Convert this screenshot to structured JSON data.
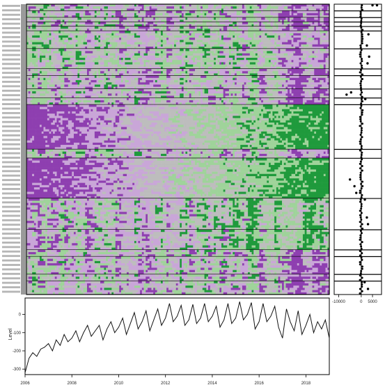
{
  "colors": {
    "purple": "#8e3fb0",
    "light_purple": "#c9a6d8",
    "grey": "#bdbdbd",
    "light_green": "#9fd39a",
    "green": "#1f9a3c",
    "line": "#111111",
    "frame": "#000000"
  },
  "chart_data": [
    {
      "type": "heatmap",
      "title": "",
      "xlabel": "",
      "ylabel": "",
      "columns": 160,
      "blocks": [
        {
          "rows": 3,
          "pattern": "mixed"
        },
        {
          "rows": 3,
          "pattern": "mixed"
        },
        {
          "rows": 2,
          "pattern": "mixed"
        },
        {
          "rows": 2,
          "pattern": "mixed"
        },
        {
          "rows": 2,
          "pattern": "mixed"
        },
        {
          "rows": 8,
          "pattern": "green_early"
        },
        {
          "rows": 9,
          "pattern": "green_early"
        },
        {
          "rows": 3,
          "pattern": "mixed"
        },
        {
          "rows": 6,
          "pattern": "mixed"
        },
        {
          "rows": 4,
          "pattern": "mixed"
        },
        {
          "rows": 3,
          "pattern": "mixed"
        },
        {
          "rows": 20,
          "pattern": "purple_to_green"
        },
        {
          "rows": 4,
          "pattern": "mixed"
        },
        {
          "rows": 18,
          "pattern": "purple_to_green"
        },
        {
          "rows": 14,
          "pattern": "purple_green_stripes"
        },
        {
          "rows": 9,
          "pattern": "purple_green_stripes"
        },
        {
          "rows": 3,
          "pattern": "mixed"
        },
        {
          "rows": 8,
          "pattern": "mixed"
        },
        {
          "rows": 3,
          "pattern": "mixed"
        },
        {
          "rows": 6,
          "pattern": "mixed"
        }
      ],
      "color_scale": [
        "#8e3fb0",
        "#c9a6d8",
        "#bdbdbd",
        "#9fd39a",
        "#1f9a3c"
      ]
    },
    {
      "type": "scatter",
      "title": "",
      "xlabel": "",
      "ylabel": "",
      "xlim": [
        -12000,
        9000
      ],
      "x_ticks": [
        -10000,
        0,
        5000
      ],
      "x_tick_labels": [
        "-10000",
        "0",
        "5000"
      ],
      "points_per_block": [
        3,
        3,
        2,
        2,
        2,
        8,
        9,
        3,
        6,
        4,
        3,
        20,
        4,
        18,
        14,
        9,
        3,
        8,
        3,
        6
      ],
      "outliers": [
        {
          "block": 0,
          "x": 5000
        },
        {
          "block": 0,
          "x": 7000
        },
        {
          "block": 5,
          "x": 2500
        },
        {
          "block": 5,
          "x": 3200
        },
        {
          "block": 6,
          "x": 3500
        },
        {
          "block": 6,
          "x": 2800
        },
        {
          "block": 9,
          "x": -6500
        },
        {
          "block": 9,
          "x": -4500
        },
        {
          "block": 10,
          "x": 1800
        },
        {
          "block": 13,
          "x": -5000
        },
        {
          "block": 13,
          "x": -3000
        },
        {
          "block": 13,
          "x": -2200
        },
        {
          "block": 14,
          "x": 2500
        },
        {
          "block": 14,
          "x": 3000
        },
        {
          "block": 14,
          "x": 1600
        },
        {
          "block": 19,
          "x": 3000
        },
        {
          "block": 19,
          "x": 1500
        }
      ]
    },
    {
      "type": "line",
      "title": "",
      "xlabel": "",
      "ylabel": "Level",
      "xlim": [
        2006.0,
        2019.0
      ],
      "ylim": [
        -330,
        90
      ],
      "x_ticks": [
        2006,
        2008,
        2010,
        2012,
        2014,
        2016,
        2018
      ],
      "x_tick_labels": [
        "2006",
        "2008",
        "2010",
        "2012",
        "2014",
        "2016",
        "2018"
      ],
      "y_ticks": [
        -300,
        -200,
        -100,
        0
      ],
      "y_tick_labels": [
        "-300",
        "-200",
        "-100",
        "0"
      ],
      "x": [
        2006.0,
        2006.17,
        2006.33,
        2006.5,
        2006.67,
        2006.83,
        2007.0,
        2007.17,
        2007.33,
        2007.5,
        2007.67,
        2007.83,
        2008.0,
        2008.17,
        2008.33,
        2008.5,
        2008.67,
        2008.83,
        2009.0,
        2009.17,
        2009.33,
        2009.5,
        2009.67,
        2009.83,
        2010.0,
        2010.17,
        2010.33,
        2010.5,
        2010.67,
        2010.83,
        2011.0,
        2011.17,
        2011.33,
        2011.5,
        2011.67,
        2011.83,
        2012.0,
        2012.17,
        2012.33,
        2012.5,
        2012.67,
        2012.83,
        2013.0,
        2013.17,
        2013.33,
        2013.5,
        2013.67,
        2013.83,
        2014.0,
        2014.17,
        2014.33,
        2014.5,
        2014.67,
        2014.83,
        2015.0,
        2015.17,
        2015.33,
        2015.5,
        2015.67,
        2015.83,
        2016.0,
        2016.17,
        2016.33,
        2016.5,
        2016.67,
        2016.83,
        2017.0,
        2017.17,
        2017.33,
        2017.5,
        2017.67,
        2017.83,
        2018.0,
        2018.17,
        2018.33,
        2018.5,
        2018.67,
        2018.83,
        2019.0
      ],
      "series": [
        {
          "values": [
            -320,
            -240,
            -210,
            -230,
            -190,
            -180,
            -160,
            -200,
            -140,
            -170,
            -110,
            -150,
            -130,
            -90,
            -150,
            -100,
            -60,
            -120,
            -90,
            -60,
            -140,
            -80,
            -40,
            -100,
            -70,
            -20,
            -110,
            -50,
            10,
            -80,
            -40,
            20,
            -90,
            -30,
            30,
            -60,
            -20,
            60,
            -40,
            -10,
            50,
            -60,
            -30,
            55,
            -50,
            -20,
            60,
            -40,
            -10,
            45,
            -70,
            -30,
            60,
            -50,
            -20,
            70,
            -30,
            0,
            65,
            -80,
            -40,
            60,
            -40,
            -10,
            45,
            -70,
            -130,
            30,
            -40,
            -90,
            20,
            -110,
            -60,
            0,
            -100,
            -40,
            -80,
            -30,
            -130
          ]
        }
      ]
    }
  ]
}
